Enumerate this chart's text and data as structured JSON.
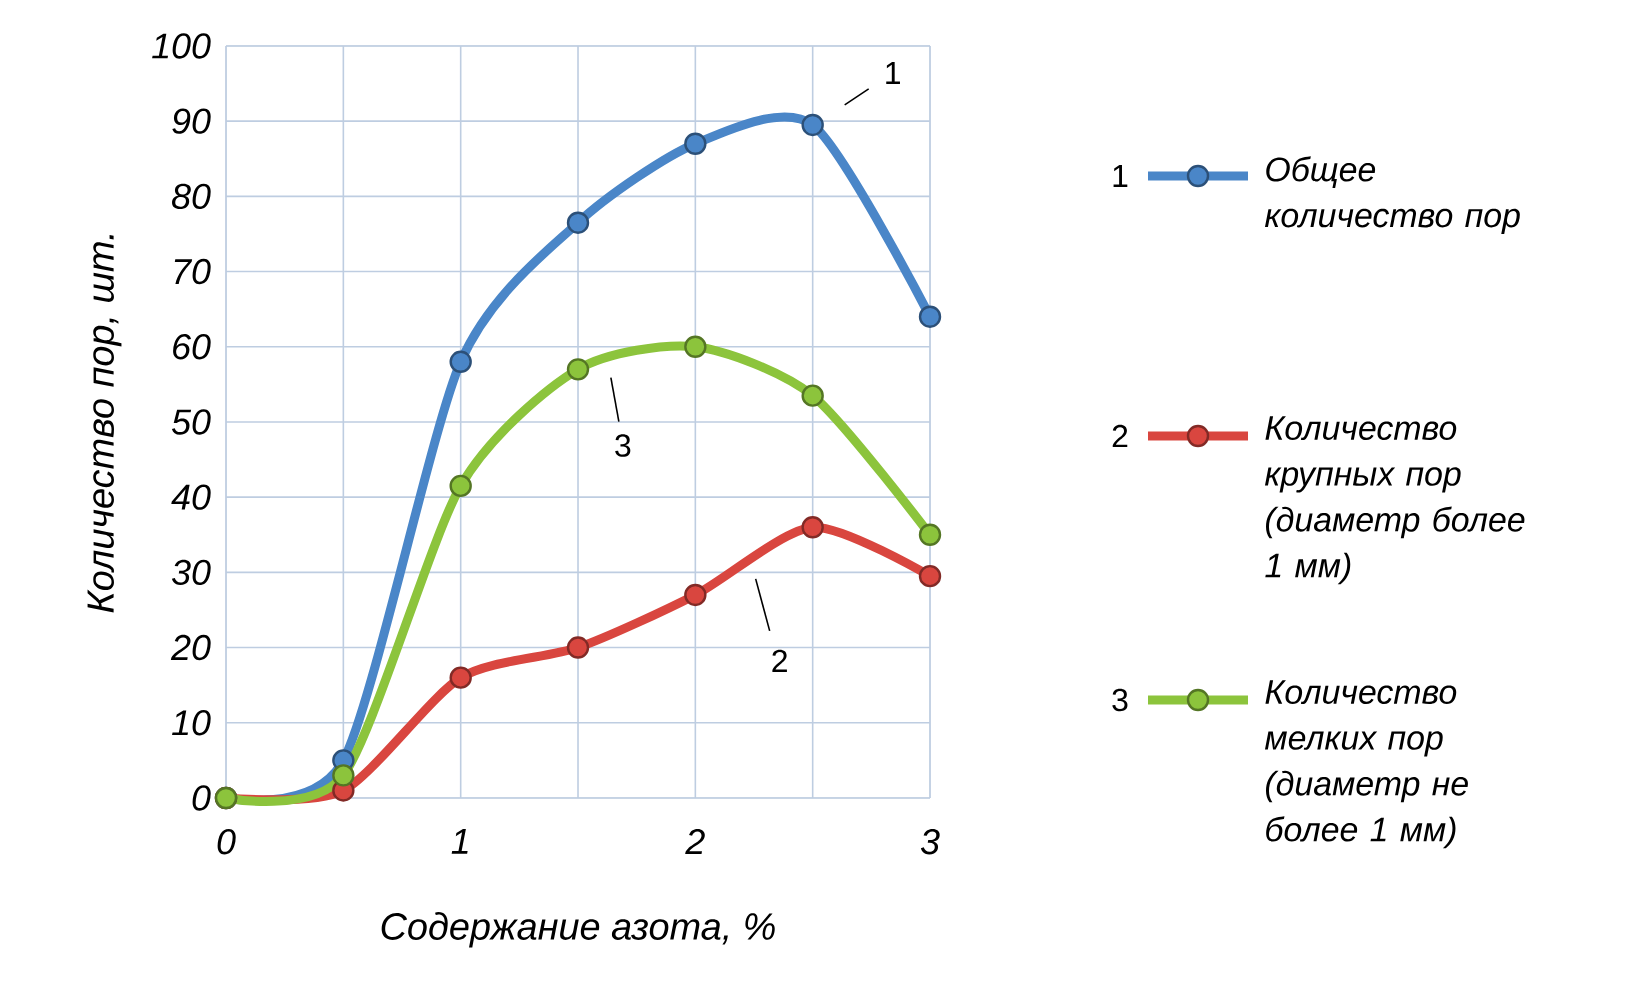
{
  "chart_data": {
    "type": "line",
    "xlabel": "Содержание азота, %",
    "ylabel": "Количество пор, шт.",
    "x": [
      0,
      0.5,
      1,
      1.5,
      2,
      2.5,
      3
    ],
    "series": [
      {
        "name": "Общее количество пор",
        "color": "#4a86c8",
        "values": [
          0,
          5,
          58,
          76.5,
          87,
          89.5,
          64
        ]
      },
      {
        "name": "Количество крупных пор (диаметр более 1 мм)",
        "color": "#d9463f",
        "values": [
          0,
          1,
          16,
          20,
          27,
          36,
          29.5
        ]
      },
      {
        "name": "Количество мелких пор (диаметр не более 1 мм)",
        "color": "#8cc43c",
        "values": [
          0,
          3,
          41.5,
          57,
          60,
          53.5,
          35
        ]
      }
    ],
    "xlim": [
      0,
      3
    ],
    "ylim": [
      0,
      100
    ],
    "xticks": [
      0,
      {
        "value": 0.5,
        "label": null
      },
      1,
      {
        "value": 1.5,
        "label": null
      },
      2,
      {
        "value": 2.5,
        "label": null
      },
      3
    ],
    "yticks": [
      0,
      10,
      20,
      30,
      40,
      50,
      60,
      70,
      80,
      90,
      100
    ],
    "annotations": [
      {
        "text": "1",
        "x": 2.5,
        "y": 89.5
      },
      {
        "text": "2",
        "x": 2.24,
        "y": 31
      },
      {
        "text": "3",
        "x": 1.64,
        "y": 57.5
      }
    ],
    "grid": true,
    "legend": "right",
    "marker": "circle",
    "line_style": "solid"
  }
}
